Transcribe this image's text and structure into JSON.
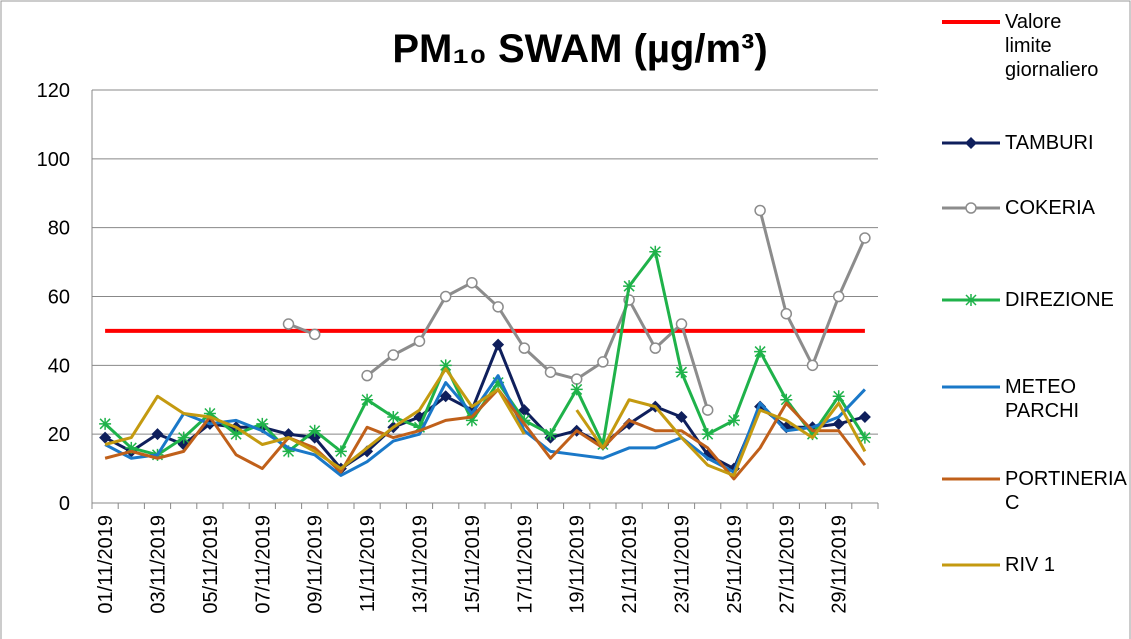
{
  "chart_data": {
    "type": "line",
    "title": "PM₁₀ SWAM (µg/m³)",
    "categories": [
      "01/11/2019",
      null,
      "03/11/2019",
      null,
      "05/11/2019",
      null,
      "07/11/2019",
      null,
      "09/11/2019",
      null,
      "11/11/2019",
      null,
      "13/11/2019",
      null,
      "15/11/2019",
      null,
      "17/11/2019",
      null,
      "19/11/2019",
      null,
      "21/11/2019",
      null,
      "23/11/2019",
      null,
      "25/11/2019",
      null,
      "27/11/2019",
      null,
      "29/11/2019",
      null
    ],
    "ylim": [
      0,
      120
    ],
    "yticks": [
      0,
      20,
      40,
      60,
      80,
      100,
      120
    ],
    "grid": true,
    "series": [
      {
        "name": "Valore limite giornaliero",
        "color": "#ff0000",
        "width": 4,
        "marker": "none",
        "values": [
          50,
          50,
          50,
          50,
          50,
          50,
          50,
          50,
          50,
          50,
          50,
          50,
          50,
          50,
          50,
          50,
          50,
          50,
          50,
          50,
          50,
          50,
          50,
          50,
          50,
          50,
          50,
          50,
          50,
          50
        ]
      },
      {
        "name": "TAMBURI",
        "color": "#0f1f5c",
        "width": 3,
        "marker": "diamond",
        "values": [
          19,
          15,
          20,
          17,
          23,
          22,
          22,
          20,
          19,
          10,
          15,
          22,
          25,
          31,
          27,
          46,
          27,
          19,
          21,
          17,
          23,
          28,
          25,
          14,
          10,
          28,
          22,
          22,
          23,
          25
        ]
      },
      {
        "name": "COKERIA",
        "color": "#8c8c8c",
        "width": 3,
        "marker": "circle",
        "values": [
          null,
          null,
          null,
          null,
          null,
          null,
          null,
          52,
          49,
          null,
          37,
          43,
          47,
          60,
          64,
          57,
          45,
          38,
          36,
          41,
          59,
          45,
          52,
          27,
          null,
          85,
          55,
          40,
          60,
          77
        ]
      },
      {
        "name": "DIREZIONE",
        "color": "#1fb24a",
        "width": 3,
        "marker": "star",
        "values": [
          23,
          16,
          14,
          19,
          26,
          20,
          23,
          15,
          21,
          15,
          30,
          25,
          22,
          40,
          24,
          35,
          24,
          20,
          33,
          17,
          63,
          73,
          38,
          20,
          24,
          44,
          30,
          20,
          31,
          19
        ]
      },
      {
        "name": "METEO PARCHI",
        "color": "#1a78c8",
        "width": 3,
        "marker": "none",
        "values": [
          17,
          13,
          14,
          26,
          23,
          24,
          21,
          16,
          14,
          8,
          12,
          18,
          20,
          35,
          26,
          37,
          21,
          15,
          14,
          13,
          16,
          16,
          19,
          13,
          9,
          29,
          21,
          22,
          25,
          33
        ]
      },
      {
        "name": "PORTINERIA C",
        "color": "#c0601a",
        "width": 3,
        "marker": "none",
        "values": [
          13,
          15,
          13,
          15,
          25,
          14,
          10,
          19,
          16,
          9,
          22,
          19,
          21,
          24,
          25,
          33,
          23,
          13,
          21,
          16,
          24,
          21,
          21,
          16,
          7,
          16,
          29,
          21,
          21,
          11
        ]
      },
      {
        "name": "RIV 1",
        "color": "#c49a10",
        "width": 3,
        "marker": "none",
        "values": [
          17,
          19,
          31,
          26,
          25,
          22,
          17,
          19,
          15,
          10,
          16,
          22,
          27,
          39,
          28,
          33,
          20,
          null,
          27,
          16,
          30,
          28,
          19,
          11,
          8,
          27,
          24,
          19,
          29,
          15
        ]
      }
    ]
  }
}
